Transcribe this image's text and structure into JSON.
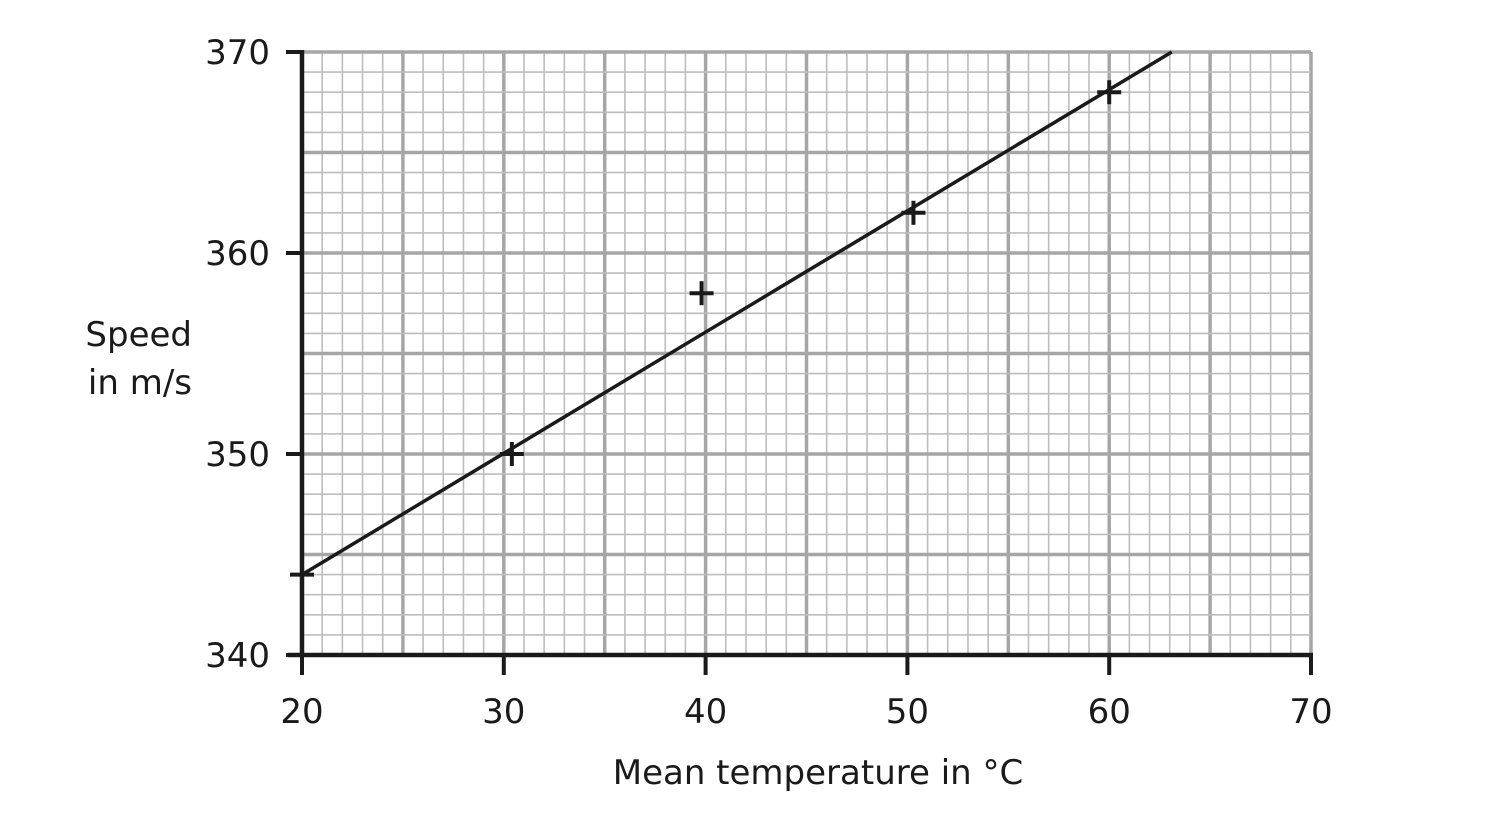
{
  "chart_data": {
    "type": "scatter",
    "title": "",
    "xlabel": "Mean temperature in °C",
    "ylabel": [
      "Speed",
      "in m/s"
    ],
    "xlim": [
      20,
      70
    ],
    "ylim": [
      340,
      370
    ],
    "x_ticks": [
      20,
      30,
      40,
      50,
      60,
      70
    ],
    "y_ticks": [
      340,
      350,
      360,
      370
    ],
    "grid": true,
    "points": [
      {
        "x": 20,
        "y": 344
      },
      {
        "x": 30.4,
        "y": 350
      },
      {
        "x": 39.8,
        "y": 358
      },
      {
        "x": 50.3,
        "y": 362
      },
      {
        "x": 60,
        "y": 368
      }
    ],
    "best_fit_line": {
      "from": {
        "x": 20,
        "y": 344
      },
      "to": {
        "x": 63.1,
        "y": 370
      }
    },
    "colors": {
      "ink": "#1a1a1a",
      "grid_major": "#a6a6a6",
      "grid_minor": "#bdbdbd"
    }
  }
}
